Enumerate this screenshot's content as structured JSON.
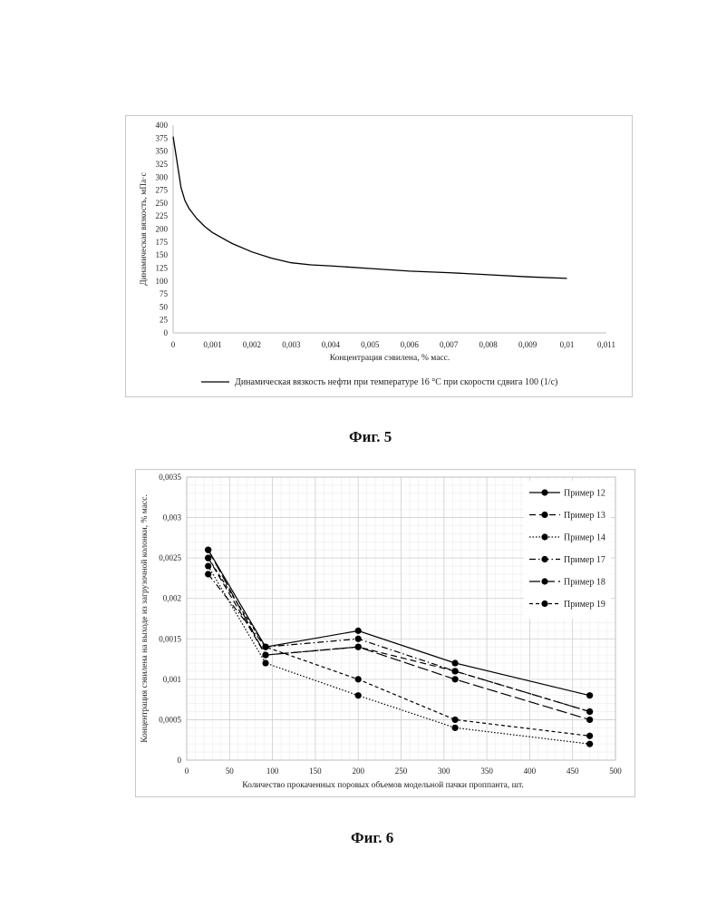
{
  "captions": {
    "fig5": "Фиг. 5",
    "fig6": "Фиг. 6"
  },
  "chart_data": [
    {
      "type": "line",
      "xlabel": "Концентрация сэвилена, % масс.",
      "ylabel": "Динамическая вязкость, мПа·с",
      "xlim": [
        0,
        0.011
      ],
      "ylim": [
        0,
        400
      ],
      "xticks": [
        "0",
        "0,001",
        "0,002",
        "0,003",
        "0,004",
        "0,005",
        "0,006",
        "0,007",
        "0,008",
        "0,009",
        "0,01",
        "0,011"
      ],
      "yticks": [
        "0",
        "25",
        "50",
        "75",
        "100",
        "125",
        "150",
        "175",
        "200",
        "225",
        "250",
        "275",
        "300",
        "325",
        "350",
        "375",
        "400"
      ],
      "grid": false,
      "legend_position": "bottom",
      "series": [
        {
          "name": "Динамическая вязкость нефти при температуре 16 °С при скорости сдвига 100 (1/с)",
          "color": "#000000",
          "x": [
            0,
            0.0001,
            0.0002,
            0.0003,
            0.0004,
            0.0006,
            0.0008,
            0.001,
            0.0015,
            0.002,
            0.0025,
            0.003,
            0.0035,
            0.004,
            0.005,
            0.006,
            0.007,
            0.008,
            0.009,
            0.01
          ],
          "y": [
            378,
            330,
            280,
            255,
            240,
            220,
            205,
            193,
            172,
            156,
            144,
            135,
            131,
            129,
            124,
            119,
            116,
            112,
            108,
            105
          ]
        }
      ]
    },
    {
      "type": "line",
      "xlabel": "Количество прокаченных поровых объемов модельной пачки проппанта, шт.",
      "ylabel": "Концентрация сэвилена на выходе из загрузочной колонки, % масс.",
      "xlim": [
        0,
        500
      ],
      "ylim": [
        0,
        0.0035
      ],
      "xticks": [
        "0",
        "50",
        "100",
        "150",
        "200",
        "250",
        "300",
        "350",
        "400",
        "450",
        "500"
      ],
      "yticks": [
        "0",
        "0,0005",
        "0,001",
        "0,0015",
        "0,002",
        "0,0025",
        "0,003",
        "0,0035"
      ],
      "grid": true,
      "legend_position": "top-right",
      "x": [
        25,
        92,
        200,
        313,
        470
      ],
      "series": [
        {
          "name": "Пример 12",
          "color": "#000000",
          "dash": "solid",
          "marker": "dot",
          "values": [
            0.0026,
            0.0014,
            0.0016,
            0.0012,
            0.0008
          ]
        },
        {
          "name": "Пример 13",
          "color": "#000000",
          "dash": "dash",
          "marker": "dot",
          "values": [
            0.0025,
            0.0013,
            0.0014,
            0.0011,
            0.0006
          ]
        },
        {
          "name": "Пример 14",
          "color": "#000000",
          "dash": "dot",
          "marker": "dot",
          "values": [
            0.0024,
            0.0012,
            0.0008,
            0.0004,
            0.0002
          ]
        },
        {
          "name": "Пример 17",
          "color": "#000000",
          "dash": "dashdot",
          "marker": "dot",
          "values": [
            0.0023,
            0.0014,
            0.0015,
            0.0011,
            0.0006
          ]
        },
        {
          "name": "Пример 18",
          "color": "#000000",
          "dash": "longdash",
          "marker": "dot",
          "values": [
            0.0026,
            0.0013,
            0.0014,
            0.001,
            0.0005
          ]
        },
        {
          "name": "Пример 19",
          "color": "#000000",
          "dash": "shortdash",
          "marker": "dot",
          "values": [
            0.0025,
            0.0014,
            0.001,
            0.0005,
            0.0003
          ]
        }
      ]
    }
  ]
}
